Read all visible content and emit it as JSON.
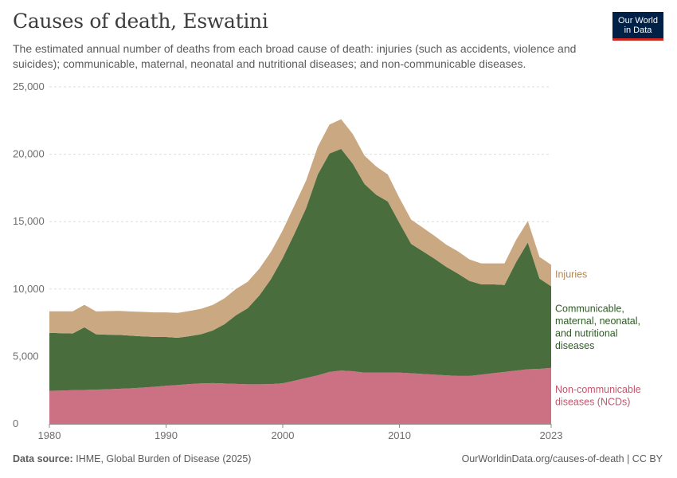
{
  "header": {
    "title": "Causes of death, Eswatini",
    "subtitle": "The estimated annual number of deaths from each broad cause of death: injuries (such as accidents, violence and suicides); communicable, maternal, neonatal and nutritional diseases; and non-communicable diseases.",
    "logo_line1": "Our World",
    "logo_line2": "in Data"
  },
  "footer": {
    "source_label": "Data source:",
    "source_text": "IHME, Global Burden of Disease (2025)",
    "url_text": "OurWorldinData.org/causes-of-death | CC BY"
  },
  "colors": {
    "ncd": "#cc7183",
    "communicable": "#4a6d3e",
    "injuries": "#caa882",
    "ncd_label": "#c3566c",
    "communicable_label": "#2f5b25",
    "injuries_label": "#b08856",
    "grid": "#dddddd",
    "axis": "#8c8c8c"
  },
  "chart_data": {
    "type": "area",
    "stacked": true,
    "title": "Causes of death, Eswatini",
    "xlabel": "",
    "ylabel": "",
    "xlim": [
      1980,
      2023
    ],
    "ylim": [
      0,
      25000
    ],
    "yticks": [
      0,
      5000,
      10000,
      15000,
      20000,
      25000
    ],
    "ytick_labels": [
      "0",
      "5,000",
      "10,000",
      "15,000",
      "20,000",
      "25,000"
    ],
    "xticks": [
      1980,
      1990,
      2000,
      2010,
      2023
    ],
    "xtick_labels": [
      "1980",
      "1990",
      "2000",
      "2010",
      "2023"
    ],
    "grid": true,
    "x": [
      1980,
      1981,
      1982,
      1983,
      1984,
      1985,
      1986,
      1987,
      1988,
      1989,
      1990,
      1991,
      1992,
      1993,
      1994,
      1995,
      1996,
      1997,
      1998,
      1999,
      2000,
      2001,
      2002,
      2003,
      2004,
      2005,
      2006,
      2007,
      2008,
      2009,
      2010,
      2011,
      2012,
      2013,
      2014,
      2015,
      2016,
      2017,
      2018,
      2019,
      2020,
      2021,
      2022,
      2023
    ],
    "series": [
      {
        "name": "Non-communicable diseases (NCDs)",
        "label_lines": [
          "Non-communicable",
          "diseases (NCDs)"
        ],
        "values": [
          2450,
          2470,
          2500,
          2510,
          2540,
          2560,
          2600,
          2640,
          2690,
          2750,
          2820,
          2880,
          2950,
          3000,
          3020,
          2990,
          2960,
          2930,
          2930,
          2950,
          3010,
          3200,
          3400,
          3600,
          3850,
          3950,
          3900,
          3800,
          3800,
          3800,
          3800,
          3750,
          3700,
          3650,
          3600,
          3550,
          3550,
          3650,
          3750,
          3850,
          3950,
          4050,
          4080,
          4150
        ]
      },
      {
        "name": "Communicable, maternal, neonatal, and nutritional diseases",
        "label_lines": [
          "Communicable,",
          "maternal, neonatal,",
          "and nutritional",
          "diseases"
        ],
        "values": [
          4300,
          4250,
          4200,
          4650,
          4100,
          4050,
          4000,
          3900,
          3800,
          3700,
          3620,
          3500,
          3550,
          3650,
          3900,
          4400,
          5100,
          5650,
          6600,
          7800,
          9300,
          10900,
          12600,
          14900,
          16200,
          16450,
          15400,
          14000,
          13200,
          12700,
          11100,
          9600,
          9100,
          8600,
          8050,
          7600,
          7050,
          6700,
          6600,
          6450,
          8050,
          9400,
          6700,
          6050
        ]
      },
      {
        "name": "Injuries",
        "label_lines": [
          "Injuries"
        ],
        "values": [
          1600,
          1630,
          1650,
          1670,
          1700,
          1750,
          1780,
          1790,
          1810,
          1820,
          1830,
          1850,
          1870,
          1880,
          1900,
          1920,
          1950,
          1960,
          1990,
          2020,
          2050,
          2100,
          2050,
          2050,
          2150,
          2200,
          2200,
          2100,
          2100,
          2000,
          1850,
          1800,
          1750,
          1700,
          1650,
          1650,
          1600,
          1550,
          1550,
          1600,
          1650,
          1600,
          1600,
          1600
        ]
      }
    ]
  }
}
